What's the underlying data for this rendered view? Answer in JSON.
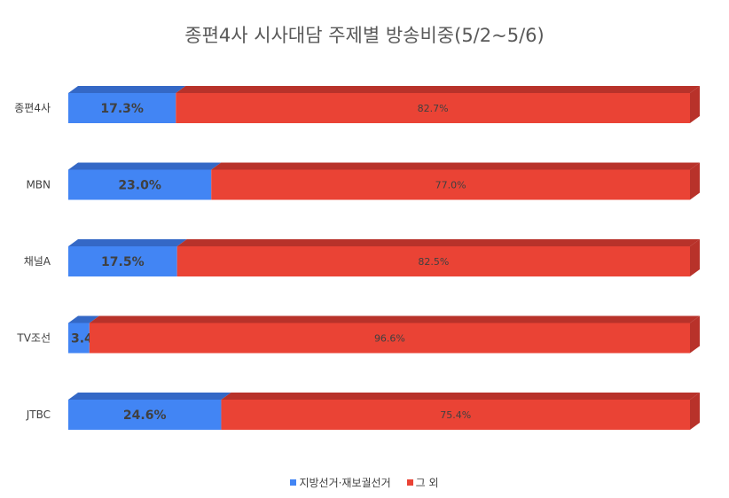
{
  "chart_data": {
    "type": "bar",
    "orientation": "horizontal",
    "stacked": "100%",
    "style": "3d",
    "title": "종편4사 시사대담 주제별 방송비중(5/2~5/6)",
    "categories": [
      "종편4사",
      "MBN",
      "채널A",
      "TV조선",
      "JTBC"
    ],
    "series": [
      {
        "name": "지방선거·재보궐선거",
        "values": [
          17.3,
          23.0,
          17.5,
          3.4,
          24.6
        ],
        "labels": [
          "17.3%",
          "23.0%",
          "17.5%",
          "3.4%",
          "24.6%"
        ],
        "color": "#4285f4",
        "top_color": "#3468c6"
      },
      {
        "name": "그 외",
        "values": [
          82.7,
          77.0,
          82.5,
          96.6,
          75.4
        ],
        "labels": [
          "82.7%",
          "77.0%",
          "82.5%",
          "96.6%",
          "75.4%"
        ],
        "color": "#ea4335",
        "top_color": "#b8322a"
      }
    ],
    "xlim": [
      0,
      100
    ],
    "grid": false,
    "legend_position": "bottom"
  }
}
